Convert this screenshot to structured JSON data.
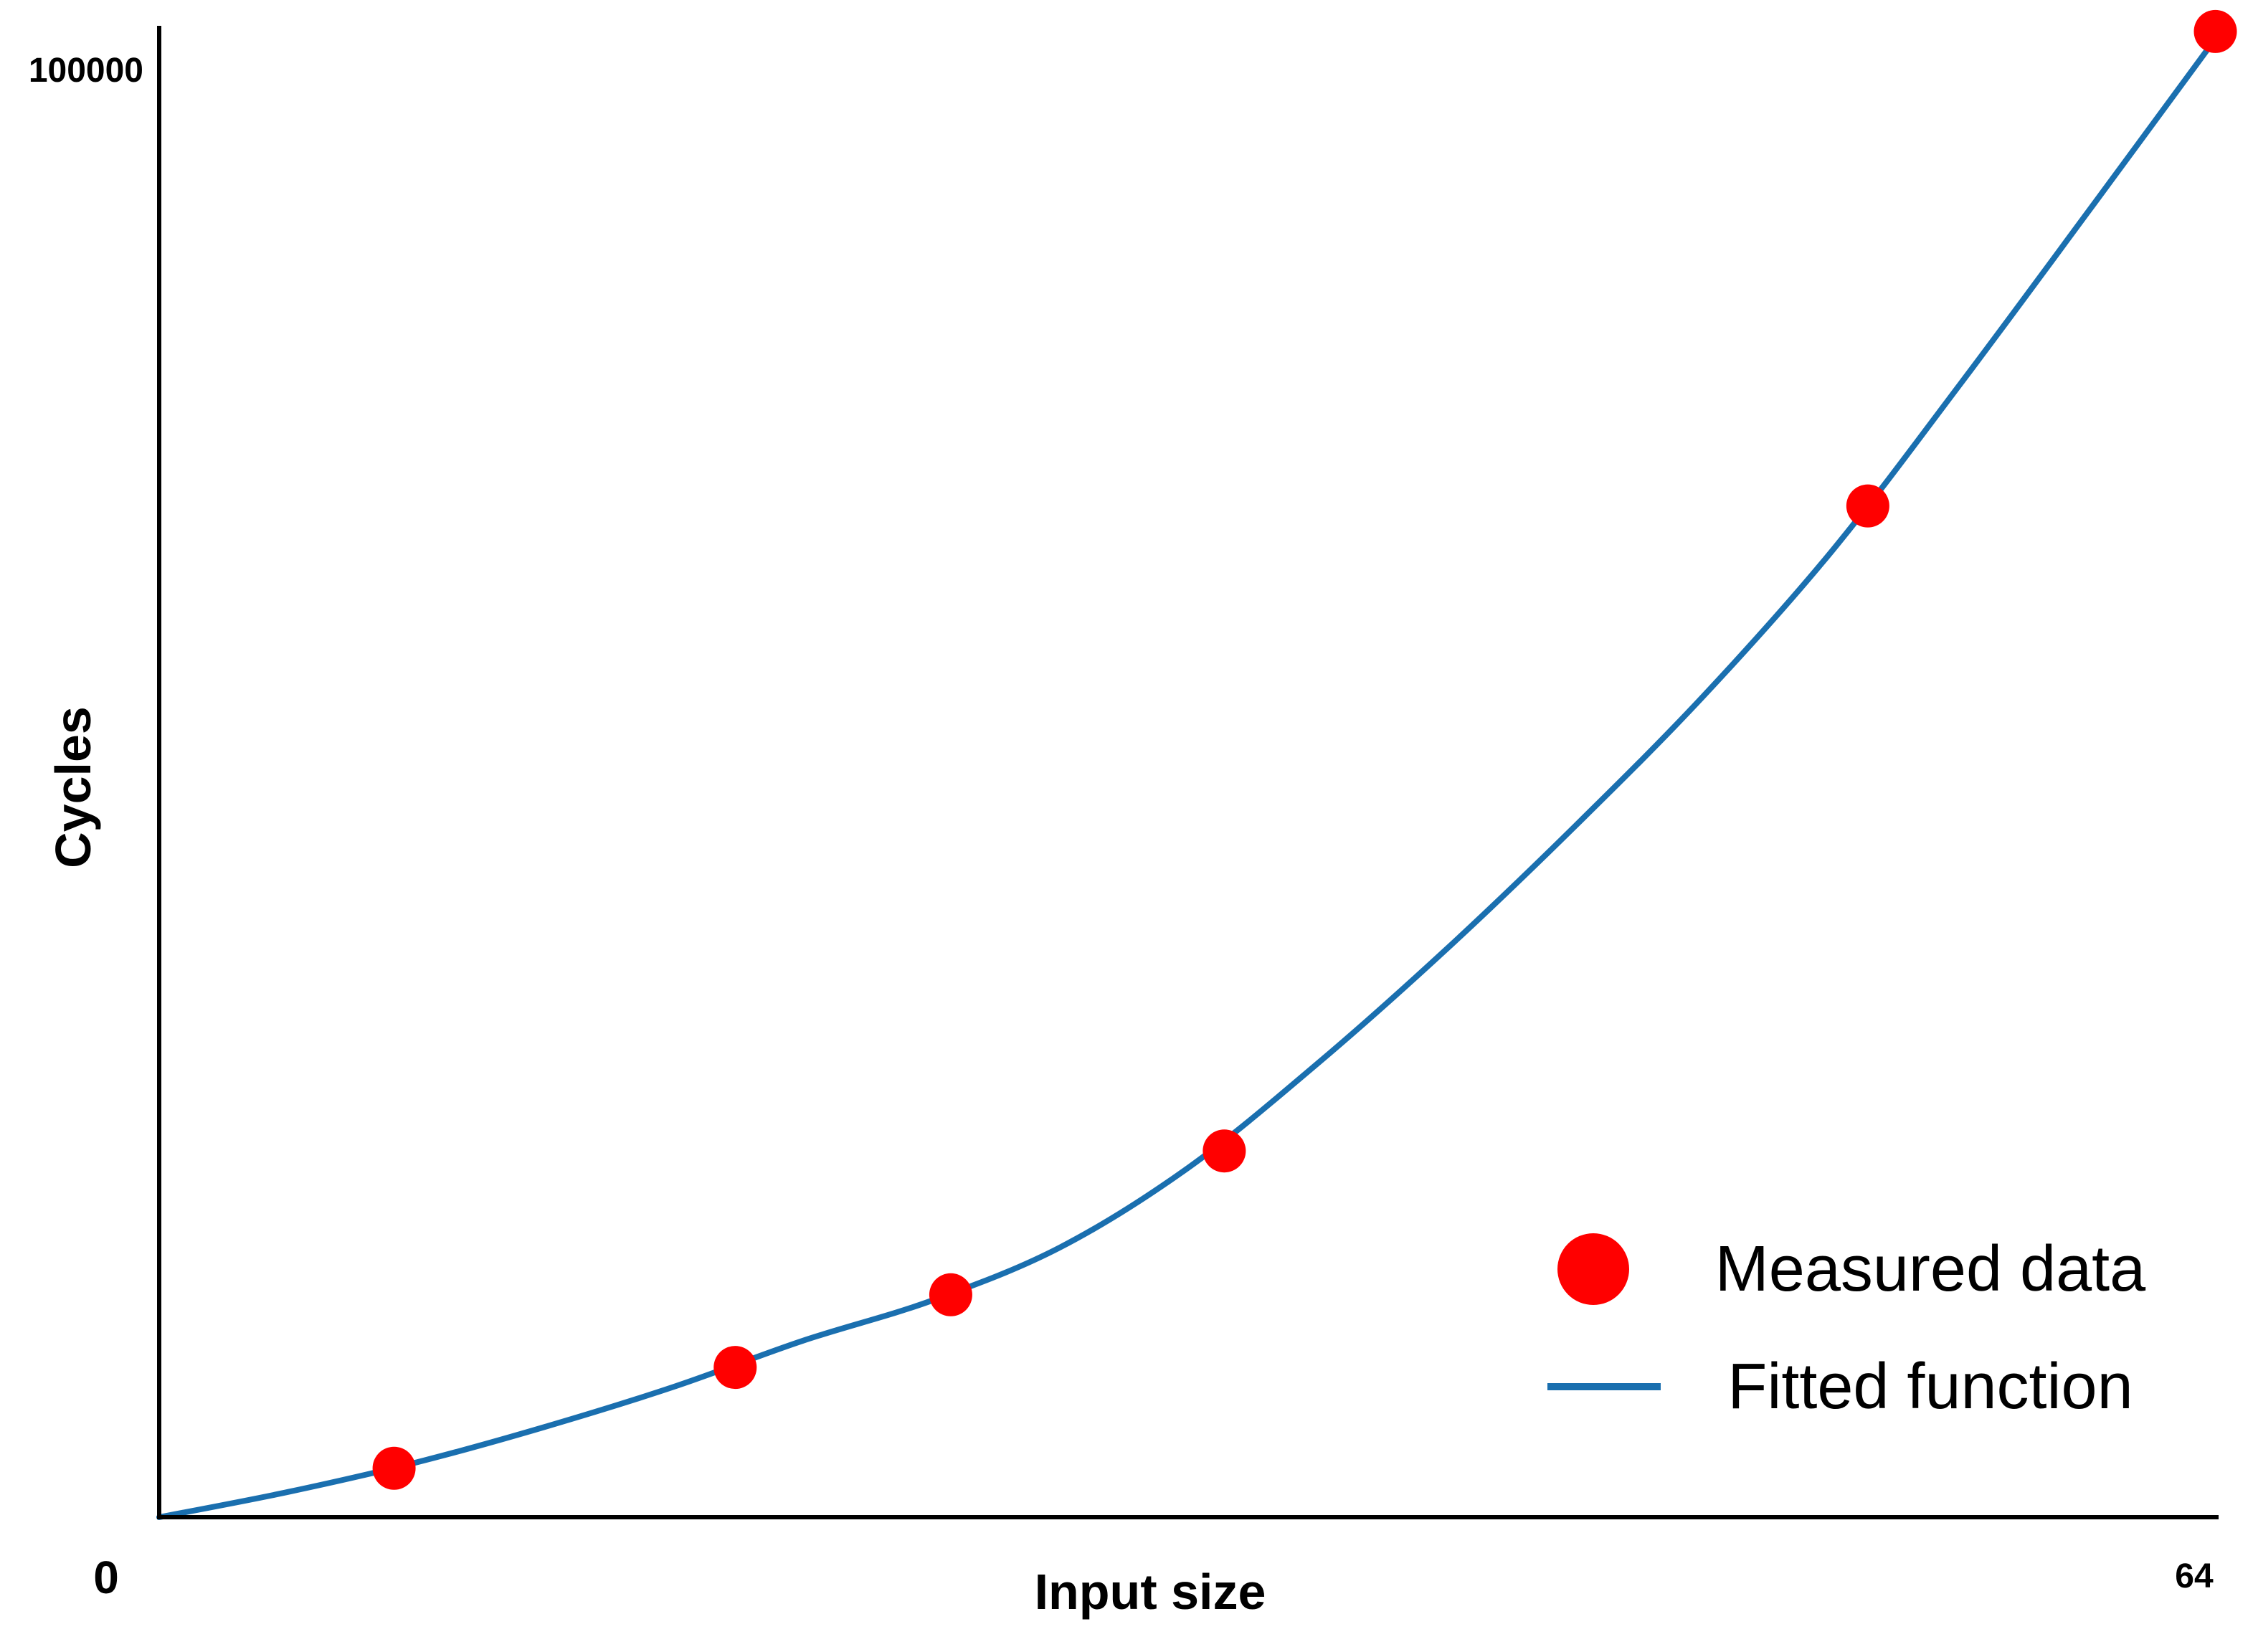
{
  "chart_data": {
    "type": "scatter",
    "xlabel": "Input size",
    "ylabel": "Cycles",
    "xlim": [
      0,
      64
    ],
    "ylim": [
      0,
      100000
    ],
    "x_ticks": [
      {
        "value": 0,
        "label": "0"
      },
      {
        "value": 64,
        "label": "64"
      }
    ],
    "y_ticks": [
      {
        "value": 100000,
        "label": "100000"
      }
    ],
    "grid": false,
    "legend_position": "bottom-right",
    "series": [
      {
        "name": "Measured data",
        "kind": "points",
        "color": "#ff0000",
        "x": [
          7.3,
          17.9,
          24.6,
          33.1,
          53.1,
          63.9
        ],
        "y": [
          3300,
          10100,
          15000,
          24700,
          68200,
          100200
        ]
      },
      {
        "name": "Fitted function",
        "kind": "line",
        "color": "#1a6faf",
        "x": [
          0,
          4,
          8,
          12,
          16,
          20,
          24,
          28,
          32,
          36,
          40,
          44,
          48,
          52,
          56,
          60,
          64
        ],
        "y": [
          0,
          1700,
          3700,
          6100,
          8800,
          11900,
          14600,
          18200,
          23600,
          30600,
          38300,
          46600,
          55400,
          65200,
          76500,
          88200,
          100000
        ]
      }
    ]
  }
}
